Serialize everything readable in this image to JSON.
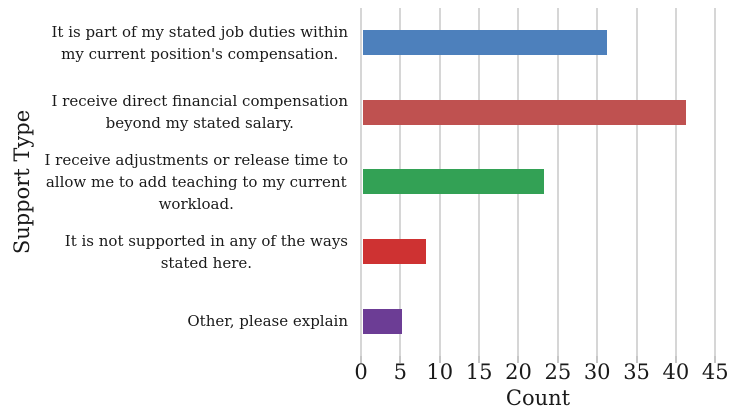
{
  "chart_data": {
    "type": "bar",
    "orientation": "horizontal",
    "title": "",
    "xlabel": "Count",
    "ylabel": "Support Type",
    "categories": [
      "It is part of my stated job duties within\nmy current position's compensation.",
      "I receive direct financial compensation\nbeyond my stated salary.",
      "I receive adjustments or release time to\nallow me to add teaching to my current\nworkload.",
      "It is not supported in any of the ways\nstated here.",
      "Other, please explain"
    ],
    "values": [
      31,
      41,
      23,
      8,
      5
    ],
    "bar_colors": [
      "#4d80bc",
      "#bf5150",
      "#33a155",
      "#ce3232",
      "#6c3d95"
    ],
    "xlim": [
      0,
      45
    ],
    "xticks": [
      0,
      5,
      10,
      15,
      20,
      25,
      30,
      35,
      40,
      45
    ],
    "grid": "vertical",
    "gridline_color": "#d6d6d6",
    "tick_color": "#c6c6c6",
    "text_color": "#1a1a1a",
    "legend": "none"
  }
}
